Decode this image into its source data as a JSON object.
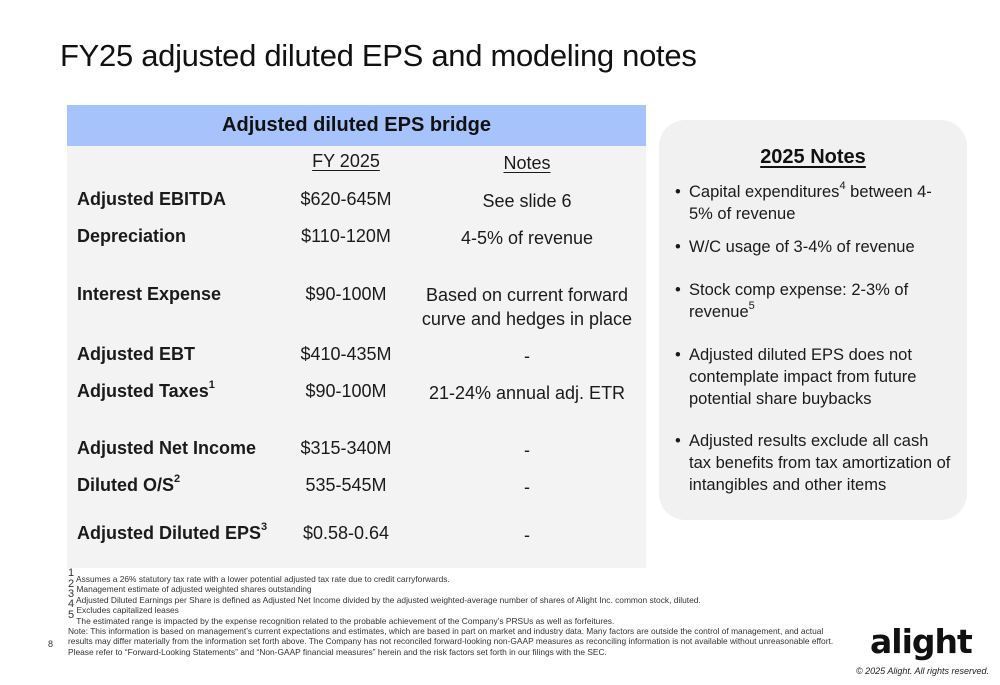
{
  "title": "FY25 adjusted diluted EPS and modeling notes",
  "bridge": {
    "header": "Adjusted diluted EPS bridge",
    "col_fy": "FY 2025",
    "col_notes": "Notes",
    "rows": [
      {
        "label": "Adjusted EBITDA",
        "sup": "",
        "value": "$620-645M",
        "note": "See slide 6"
      },
      {
        "label": "Depreciation",
        "sup": "",
        "value": "$110-120M",
        "note": "4-5% of revenue"
      },
      {
        "label": "Interest Expense",
        "sup": "",
        "value": "$90-100M",
        "note": "Based on current forward curve and hedges in place"
      },
      {
        "label": "Adjusted EBT",
        "sup": "",
        "value": "$410-435M",
        "note": "-"
      },
      {
        "label": "Adjusted Taxes",
        "sup": "1",
        "value": "$90-100M",
        "note": "21-24% annual adj. ETR"
      },
      {
        "label": "Adjusted Net Income",
        "sup": "",
        "value": "$315-340M",
        "note": "-"
      },
      {
        "label": "Diluted O/S",
        "sup": "2",
        "value": "535-545M",
        "note": "-"
      },
      {
        "label": "Adjusted Diluted EPS",
        "sup": "3",
        "value": "$0.58-0.64",
        "note": "-"
      }
    ]
  },
  "notes": {
    "title": "2025 Notes",
    "bullets": [
      {
        "pre": "Capital expenditures",
        "sup": "4",
        "post": " between 4-5% of revenue"
      },
      {
        "pre": "W/C usage of 3-4% of revenue",
        "sup": "",
        "post": ""
      },
      {
        "pre": "Stock comp expense: 2-3% of revenue",
        "sup": "5",
        "post": ""
      },
      {
        "pre": "Adjusted diluted EPS does not contemplate impact from future potential share buybacks",
        "sup": "",
        "post": ""
      },
      {
        "pre": "Adjusted results exclude all cash tax benefits from tax amortization of intangibles and other items",
        "sup": "",
        "post": ""
      }
    ],
    "bullet_char": "•"
  },
  "footnotes": {
    "items": [
      {
        "sup": "1",
        "text": " Assumes a 26% statutory tax rate with a lower potential adjusted tax rate due to credit carryforwards."
      },
      {
        "sup": "2",
        "text": " Management estimate of adjusted weighted shares outstanding"
      },
      {
        "sup": "3",
        "text": " Adjusted Diluted Earnings per Share is defined as Adjusted Net Income divided by the adjusted weighted-average number of shares of Alight Inc. common stock, diluted."
      },
      {
        "sup": "4",
        "text": " Excludes capitalized leases"
      },
      {
        "sup": "5",
        "text": " The estimated range is impacted by the expense recognition related to the probable achievement of the Company’s PRSUs as well as forfeitures."
      }
    ],
    "note": "Note: This information is based on management’s current expectations and estimates, which are based in part on market and industry data. Many factors are outside the control of management, and actual results may differ materially from the information set forth above. The Company has not reconciled forward-looking non-GAAP measures as reconciling information is not available without unreasonable effort. Please refer to “Forward-Looking Statements” and “Non-GAAP financial measures” herein and the risk factors set forth in our filings with the SEC."
  },
  "page_number": "8",
  "logo": "alight",
  "copyright": "© 2025 Alight. All rights reserved."
}
